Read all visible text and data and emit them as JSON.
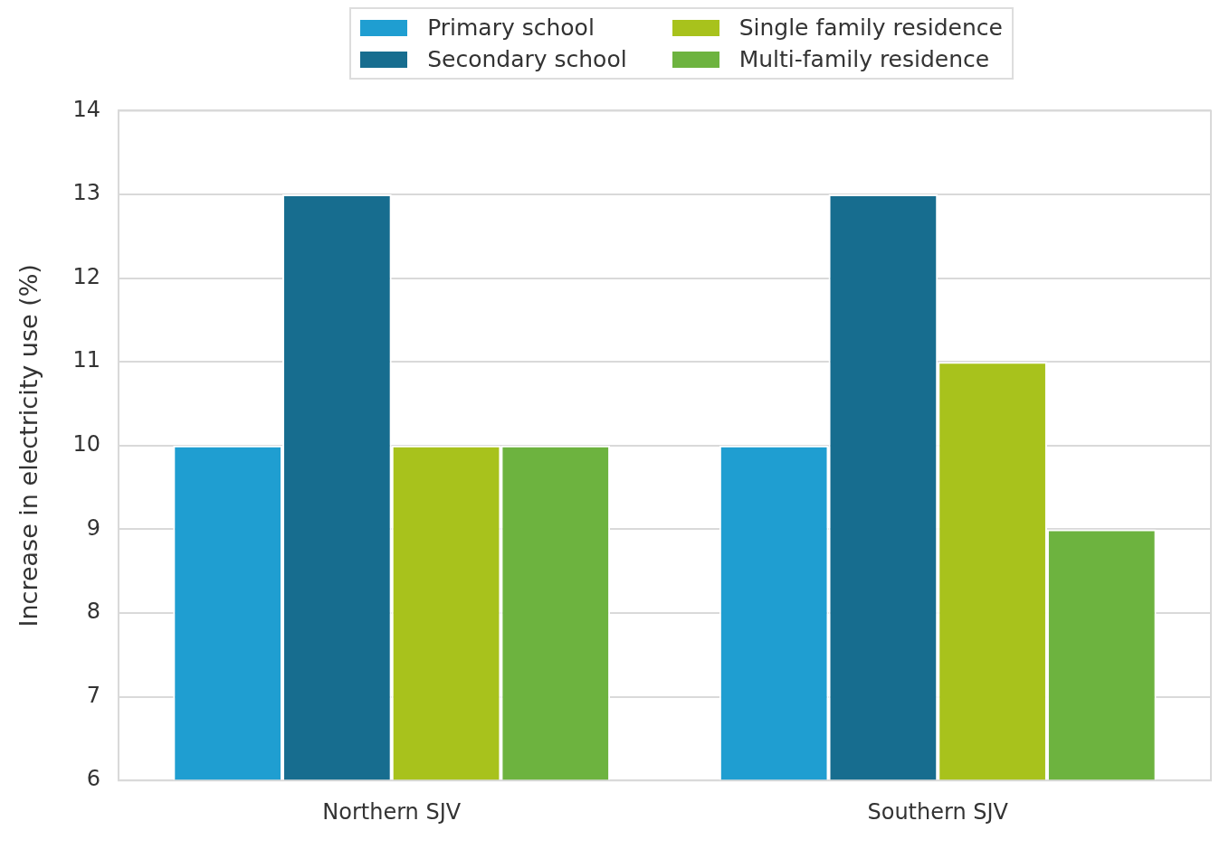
{
  "chart_data": {
    "type": "bar",
    "ylabel": "Increase in electricity use (%)",
    "categories": [
      "Northern SJV",
      "Southern SJV"
    ],
    "series": [
      {
        "name": "Primary school",
        "color": "#1f9ed1",
        "values": [
          10,
          10
        ]
      },
      {
        "name": "Secondary school",
        "color": "#176d8f",
        "values": [
          13,
          13
        ]
      },
      {
        "name": "Single family residence",
        "color": "#a8c21c",
        "values": [
          10,
          11
        ]
      },
      {
        "name": "Multi-family residence",
        "color": "#6db33f",
        "values": [
          10,
          9
        ]
      }
    ],
    "ylim": [
      6,
      14
    ],
    "yticks": [
      6,
      7,
      8,
      9,
      10,
      11,
      12,
      13,
      14
    ],
    "grid": "y",
    "legend": "top"
  }
}
